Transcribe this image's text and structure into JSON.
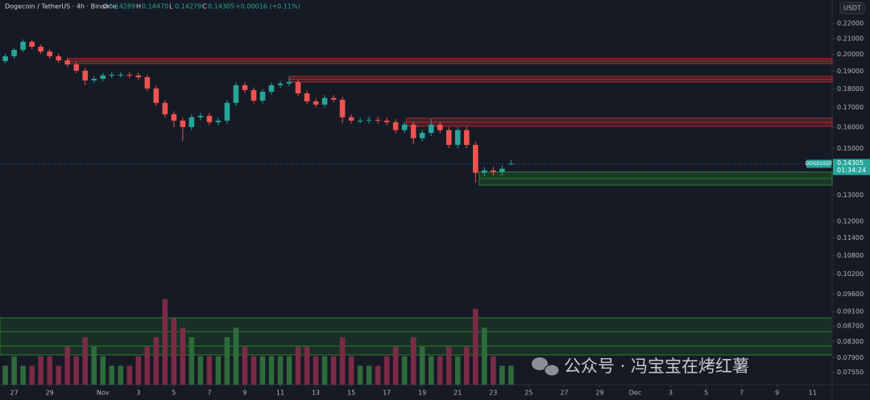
{
  "chart_data": {
    "type": "candlestick",
    "title": "Dogecoin / TetherUS · 4h · Binance",
    "legend": [
      {
        "key": "O",
        "value": "0.14289"
      },
      {
        "key": "H",
        "value": "0.14470"
      },
      {
        "key": "L",
        "value": "0.14279"
      },
      {
        "key": "C",
        "value": "0.14305"
      }
    ],
    "change": "+0.00016 (+0.11%)",
    "currency": "USDT",
    "symbol_label": "DOGEUSDT",
    "last_price": {
      "value": 0.14305,
      "label": "0.14305"
    },
    "countdown": "01:34:24",
    "watermark": "公众号 · 冯宝宝在烤红薯",
    "log_scale": true,
    "grid": false,
    "up_color": "#26a69a",
    "down_color": "#ef5350",
    "up_volume_color": "#2e6b3a",
    "down_volume_color": "#7a2b45",
    "x": [
      -0.5,
      0,
      0.5,
      1,
      1.5,
      2,
      2.5,
      3,
      3.5,
      4,
      4.5,
      5,
      5.5,
      6,
      6.5,
      7,
      7.5,
      8,
      8.5,
      9,
      9.5,
      10,
      10.5,
      11,
      11.5,
      12,
      12.5,
      13,
      13.5,
      14,
      14.5,
      15,
      15.5,
      16,
      16.5,
      17,
      17.5,
      18,
      18.5,
      19,
      19.5,
      20,
      20.5,
      21,
      21.5,
      22,
      22.5,
      23,
      23.5,
      24,
      24.5,
      25,
      25.5,
      26,
      26.5,
      27,
      27.5,
      28
    ],
    "open": [
      0.196,
      0.1989,
      0.2028,
      0.2079,
      0.2048,
      0.2018,
      0.1989,
      0.1964,
      0.194,
      0.1903,
      0.1847,
      0.1856,
      0.1875,
      0.1879,
      0.1879,
      0.1875,
      0.1865,
      0.1802,
      0.1724,
      0.1665,
      0.1633,
      0.1601,
      0.165,
      0.1657,
      0.1625,
      0.1633,
      0.1724,
      0.182,
      0.1793,
      0.1736,
      0.1784,
      0.182,
      0.1829,
      0.1838,
      0.1775,
      0.1732,
      0.1715,
      0.175,
      0.1741,
      0.165,
      0.1633,
      0.1633,
      0.1637,
      0.1633,
      0.1625,
      0.1586,
      0.1613,
      0.1547,
      0.1573,
      0.1613,
      0.1586,
      0.1516,
      0.1586,
      0.1516,
      0.1392,
      0.1402,
      0.1395,
      0.14289
    ],
    "high": [
      0.2004,
      0.2043,
      0.2094,
      0.2094,
      0.2063,
      0.2033,
      0.2004,
      0.1979,
      0.1955,
      0.1918,
      0.1871,
      0.189,
      0.1894,
      0.1894,
      0.1894,
      0.189,
      0.188,
      0.1817,
      0.1739,
      0.168,
      0.1648,
      0.1665,
      0.1672,
      0.1672,
      0.1648,
      0.1739,
      0.1835,
      0.1835,
      0.1808,
      0.1799,
      0.1835,
      0.1844,
      0.1865,
      0.1853,
      0.179,
      0.1747,
      0.1765,
      0.1765,
      0.1756,
      0.1665,
      0.1648,
      0.1652,
      0.1652,
      0.1648,
      0.164,
      0.1628,
      0.1628,
      0.1588,
      0.164,
      0.1628,
      0.1601,
      0.1601,
      0.1601,
      0.1531,
      0.1417,
      0.1417,
      0.1424,
      0.1447
    ],
    "low": [
      0.1945,
      0.1974,
      0.2013,
      0.2033,
      0.2003,
      0.1974,
      0.1949,
      0.1925,
      0.1888,
      0.182,
      0.1832,
      0.1841,
      0.186,
      0.1864,
      0.186,
      0.185,
      0.1787,
      0.1709,
      0.165,
      0.16,
      0.1535,
      0.1586,
      0.1635,
      0.161,
      0.161,
      0.1618,
      0.1709,
      0.1778,
      0.1721,
      0.1721,
      0.1769,
      0.1805,
      0.1814,
      0.176,
      0.1717,
      0.17,
      0.17,
      0.1726,
      0.162,
      0.1618,
      0.1618,
      0.1618,
      0.1618,
      0.161,
      0.1571,
      0.1571,
      0.152,
      0.1532,
      0.1558,
      0.1571,
      0.1501,
      0.1501,
      0.1501,
      0.135,
      0.1377,
      0.138,
      0.138,
      0.14279
    ],
    "close": [
      0.1989,
      0.2028,
      0.2079,
      0.2048,
      0.2018,
      0.1989,
      0.1964,
      0.194,
      0.1903,
      0.1847,
      0.1856,
      0.1875,
      0.1879,
      0.1879,
      0.1875,
      0.1865,
      0.1802,
      0.1724,
      0.1665,
      0.1633,
      0.1601,
      0.165,
      0.1657,
      0.1625,
      0.1633,
      0.1724,
      0.182,
      0.1793,
      0.1736,
      0.1784,
      0.182,
      0.1829,
      0.1838,
      0.1775,
      0.1732,
      0.1715,
      0.175,
      0.1741,
      0.165,
      0.1633,
      0.1633,
      0.1637,
      0.1633,
      0.1625,
      0.1586,
      0.1613,
      0.1547,
      0.1573,
      0.1613,
      0.1586,
      0.1516,
      0.1586,
      0.1516,
      0.1392,
      0.1402,
      0.1395,
      0.1409,
      0.14305
    ],
    "volume": [
      2,
      3,
      2,
      2,
      3,
      3,
      2,
      4,
      3,
      5,
      4,
      3,
      2,
      2,
      2,
      3,
      4,
      5,
      9,
      7,
      6,
      5,
      3,
      3,
      3,
      5,
      6,
      4,
      3,
      3,
      3,
      3,
      3,
      4,
      4,
      3,
      3,
      3,
      5,
      3,
      2,
      2,
      2,
      3,
      4,
      3,
      5,
      4,
      3,
      3,
      4,
      3,
      4,
      8,
      6,
      3,
      2,
      2
    ],
    "vlim": [
      0,
      10
    ],
    "zones": [
      {
        "y": [
          0.1945,
          0.1975
        ],
        "x0": 3.05,
        "color": "#b22833"
      },
      {
        "y": [
          0.1838,
          0.187
        ],
        "x0": 15.5,
        "color": "#b22833"
      },
      {
        "y": [
          0.1605,
          0.1645
        ],
        "x0": 22.1,
        "color": "#b22833"
      },
      {
        "y": [
          0.134,
          0.1395
        ],
        "x0": 26.2,
        "color": "#2e7d32"
      }
    ],
    "xlim": [
      -0.8,
      46.1
    ],
    "xticks": [
      {
        "value": 0,
        "label": "27"
      },
      {
        "value": 2,
        "label": "29"
      },
      {
        "value": 5,
        "label": "Nov"
      },
      {
        "value": 7,
        "label": "3"
      },
      {
        "value": 9,
        "label": "5"
      },
      {
        "value": 11,
        "label": "7"
      },
      {
        "value": 13,
        "label": "9"
      },
      {
        "value": 15,
        "label": "11"
      },
      {
        "value": 17,
        "label": "13"
      },
      {
        "value": 19,
        "label": "15"
      },
      {
        "value": 21,
        "label": "17"
      },
      {
        "value": 23,
        "label": "19"
      },
      {
        "value": 25,
        "label": "21"
      },
      {
        "value": 27,
        "label": "23"
      },
      {
        "value": 29,
        "label": "25"
      },
      {
        "value": 31,
        "label": "27"
      },
      {
        "value": 33,
        "label": "29"
      },
      {
        "value": 35,
        "label": "Dec"
      },
      {
        "value": 37,
        "label": "3"
      },
      {
        "value": 39,
        "label": "5"
      },
      {
        "value": 41,
        "label": "7"
      },
      {
        "value": 43,
        "label": "9"
      },
      {
        "value": 45,
        "label": "11"
      }
    ],
    "ylim": [
      0.0727,
      0.2363
    ],
    "yticks": [
      {
        "value": 0.22,
        "label": "0.22000"
      },
      {
        "value": 0.21,
        "label": "0.21000"
      },
      {
        "value": 0.2,
        "label": "0.20000"
      },
      {
        "value": 0.19,
        "label": "0.19000"
      },
      {
        "value": 0.18,
        "label": "0.18000"
      },
      {
        "value": 0.17,
        "label": "0.17000"
      },
      {
        "value": 0.16,
        "label": "0.16000"
      },
      {
        "value": 0.15,
        "label": "0.15000"
      },
      {
        "value": 0.13,
        "label": "0.13000"
      },
      {
        "value": 0.12,
        "label": "0.12000"
      },
      {
        "value": 0.114,
        "label": "0.11400"
      },
      {
        "value": 0.108,
        "label": "0.10800"
      },
      {
        "value": 0.102,
        "label": "0.10200"
      },
      {
        "value": 0.096,
        "label": "0.09600"
      },
      {
        "value": 0.091,
        "label": "0.09100"
      },
      {
        "value": 0.087,
        "label": "0.08700"
      },
      {
        "value": 0.083,
        "label": "0.08300"
      },
      {
        "value": 0.079,
        "label": "0.07900"
      },
      {
        "value": 0.0755,
        "label": "0.07550"
      }
    ]
  }
}
